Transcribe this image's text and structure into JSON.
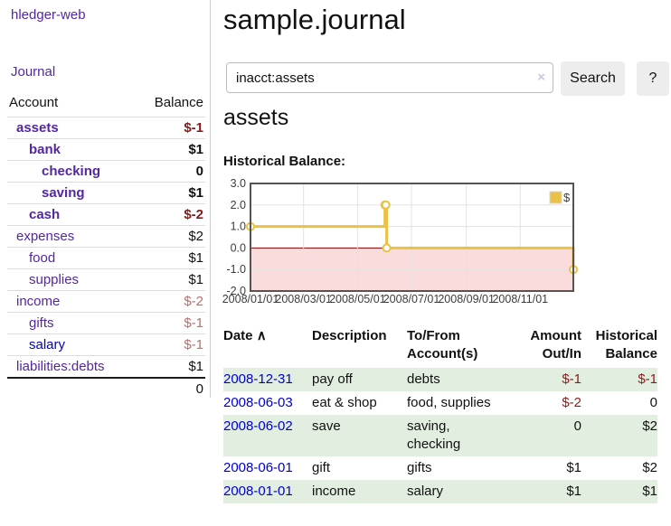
{
  "app": {
    "title": "hledger-web"
  },
  "sidebar": {
    "journal_link": "Journal",
    "account_header": "Account",
    "balance_header": "Balance",
    "accounts": [
      {
        "name": "assets",
        "level": 0,
        "bold": true,
        "balance": "$-1",
        "negative": true
      },
      {
        "name": "bank",
        "level": 1,
        "bold": true,
        "balance": "$1",
        "negative": false
      },
      {
        "name": "checking",
        "level": 2,
        "bold": true,
        "balance": "0",
        "negative": false
      },
      {
        "name": "saving",
        "level": 2,
        "bold": true,
        "balance": "$1",
        "negative": false
      },
      {
        "name": "cash",
        "level": 1,
        "bold": true,
        "balance": "$-2",
        "negative": true
      },
      {
        "name": "expenses",
        "level": 0,
        "bold": false,
        "balance": "$2",
        "negative": false
      },
      {
        "name": "food",
        "level": 1,
        "bold": false,
        "balance": "$1",
        "negative": false
      },
      {
        "name": "supplies",
        "level": 1,
        "bold": false,
        "balance": "$1",
        "negative": false
      },
      {
        "name": "income",
        "level": 0,
        "bold": false,
        "balance": "$-2",
        "negative": true
      },
      {
        "name": "gifts",
        "level": 1,
        "bold": false,
        "balance": "$-1",
        "negative": true
      },
      {
        "name": "salary",
        "level": 1,
        "bold": false,
        "balance": "$-1",
        "negative": true,
        "blue": true
      },
      {
        "name": "liabilities:debts",
        "level": 0,
        "bold": false,
        "balance": "$1",
        "negative": false
      }
    ],
    "total": "0"
  },
  "header": {
    "title": "sample.journal"
  },
  "search": {
    "value": "inacct:assets",
    "clear_icon": "×",
    "button_label": "Search",
    "help_label": "?"
  },
  "main": {
    "account_heading": "assets"
  },
  "chart_data": {
    "type": "line",
    "title": "Historical Balance:",
    "step": true,
    "series": [
      {
        "name": "$",
        "color": "#eac243",
        "points": [
          [
            "2008-01-01",
            1
          ],
          [
            "2008-06-01",
            2
          ],
          [
            "2008-06-02",
            2
          ],
          [
            "2008-06-03",
            0
          ],
          [
            "2008-12-31",
            -1
          ]
        ]
      }
    ],
    "xlim": [
      "2008-01-01",
      "2008-12-31"
    ],
    "ylim": [
      -2,
      3
    ],
    "x_ticks": [
      "2008/01/01",
      "2008/03/01",
      "2008/05/01",
      "2008/07/01",
      "2008/09/01",
      "2008/11/01"
    ],
    "y_ticks": [
      "3.0",
      "2.0",
      "1.0",
      "0.0",
      "-1.0",
      "-2.0"
    ],
    "legend_position": "top-right",
    "grid": true
  },
  "transactions": {
    "headers": {
      "date": "Date",
      "sort_indicator": "∧",
      "description": "Description",
      "accounts": "To/From Account(s)",
      "amount": "Amount Out/In",
      "balance": "Historical Balance"
    },
    "rows": [
      {
        "date": "2008-12-31",
        "description": "pay off",
        "accounts": "debts",
        "amount": "$-1",
        "balance": "$-1"
      },
      {
        "date": "2008-06-03",
        "description": "eat & shop",
        "accounts": "food, supplies",
        "amount": "$-2",
        "balance": "0"
      },
      {
        "date": "2008-06-02",
        "description": "save",
        "accounts": "saving, checking",
        "amount": "0",
        "balance": "$2"
      },
      {
        "date": "2008-06-01",
        "description": "gift",
        "accounts": "gifts",
        "amount": "$1",
        "balance": "$2"
      },
      {
        "date": "2008-01-01",
        "description": "income",
        "accounts": "salary",
        "amount": "$1",
        "balance": "$1"
      }
    ]
  },
  "colors": {
    "purple": "#5426a4",
    "link_blue": "#0000cc",
    "negative_strong": "#871919",
    "negative_soft": "#b5706f",
    "table_negative": "#8b1a1a",
    "amount_default": "#111111",
    "row_green": "#e2efe0",
    "chart_gold": "#eac243",
    "chart_pink": "#fadcdc",
    "zero_line": "#8b0000",
    "chart_border": "#545454",
    "grid_line": "#e3e3e3",
    "tick_text": "#3c3c3c"
  }
}
